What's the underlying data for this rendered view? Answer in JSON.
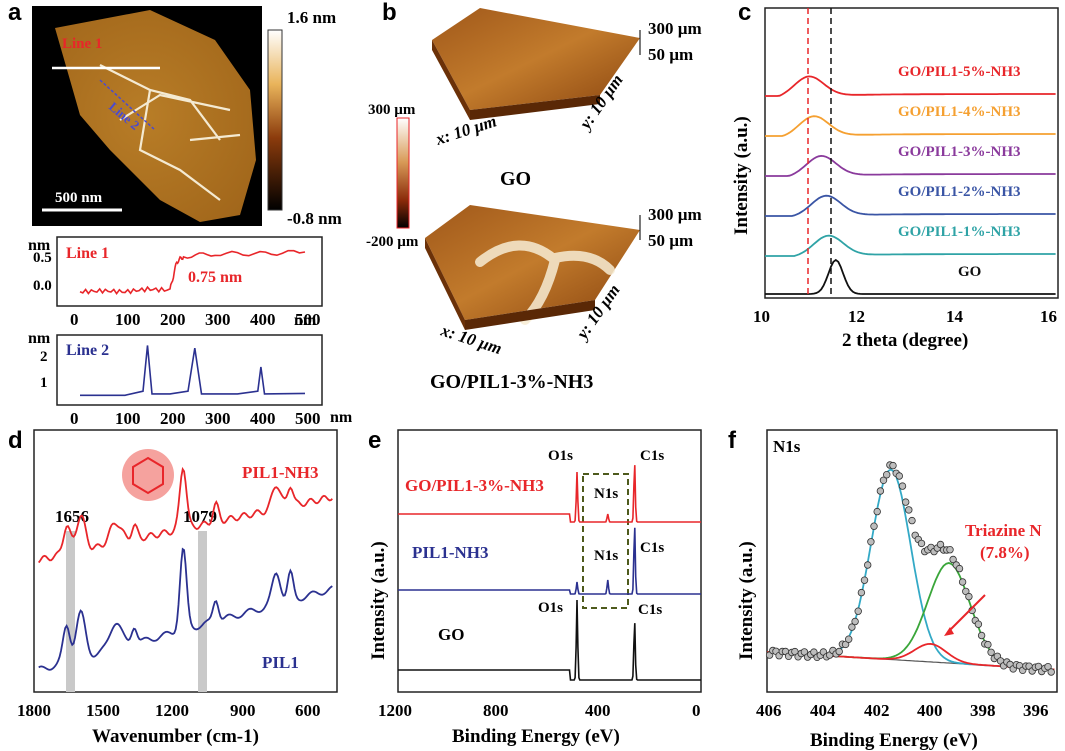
{
  "panels": {
    "a": {
      "letter": "a",
      "afm": {
        "colorbar_max": "1.6 nm",
        "colorbar_min": "-0.8 nm",
        "scalebar": "500 nm",
        "line1_label": "Line 1",
        "line2_label": "Line 2"
      },
      "profile1": {
        "unit_label": "nm",
        "name": "Line 1",
        "annotation": "0.75 nm",
        "x_unit": "nm",
        "x_ticks": [
          "0",
          "100",
          "200",
          "300",
          "400",
          "500"
        ],
        "y_ticks": [
          "0.0",
          "0.5"
        ]
      },
      "profile2": {
        "unit_label": "nm",
        "name": "Line 2",
        "x_unit": "nm",
        "x_ticks": [
          "0",
          "100",
          "200",
          "300",
          "400",
          "500"
        ],
        "y_ticks": [
          "1",
          "2"
        ]
      }
    },
    "b": {
      "letter": "b",
      "colorbar_top": "300 µm",
      "colorbar_bottom": "-200 µm",
      "go": {
        "name": "GO",
        "z1": "300 µm",
        "z2": "50 µm",
        "x": "x: 10 µm",
        "y": "y: 10 µm"
      },
      "gopil": {
        "name": "GO/PIL1-3%-NH3",
        "z1": "300 µm",
        "z2": "50 µm",
        "x": "x: 10 µm",
        "y": "y: 10 µm"
      }
    },
    "c": {
      "letter": "c",
      "ylabel": "Intensity (a.u.)",
      "xlabel": "2 theta (degree)",
      "x_ticks": [
        "10",
        "12",
        "14",
        "16"
      ]
    },
    "d": {
      "letter": "d",
      "xlabel": "Wavenumber (cm-1)",
      "x_ticks": [
        "1800",
        "1500",
        "1200",
        "900",
        "600"
      ],
      "mark1": "1656",
      "mark2": "1079",
      "label_top": "PIL1-NH3",
      "label_bottom": "PIL1"
    },
    "e": {
      "letter": "e",
      "ylabel": "Intensity (a.u.)",
      "xlabel": "Binding Energy (eV)",
      "x_ticks": [
        "1200",
        "800",
        "400",
        "0"
      ],
      "label_top": "GO/PIL1-3%-NH3",
      "label_mid": "PIL1-NH3",
      "label_bot": "GO",
      "o1s": "O1s",
      "c1s": "C1s",
      "n1s": "N1s"
    },
    "f": {
      "letter": "f",
      "ylabel": "Intensity (a.u.)",
      "xlabel": "Binding Energy (eV)",
      "x_ticks": [
        "406",
        "404",
        "402",
        "400",
        "398",
        "396"
      ],
      "title": "N1s",
      "annotation1": "Triazine N",
      "annotation2": "(7.8%)"
    }
  },
  "colors": {
    "red": "#e8262a",
    "blue": "#2b3190",
    "black": "#111111",
    "orange": "#f5a031",
    "purple": "#8a3a9c",
    "navy": "#3a55a5",
    "teal": "#2fa3a6",
    "green": "#3aa63a",
    "cyan": "#33a9c6",
    "grayband": "#c9c9c9",
    "olive": "#4e5a1c"
  },
  "chart_data": [
    {
      "panel": "a-line1",
      "type": "line",
      "xlabel": "",
      "ylabel": "",
      "xlim": [
        0,
        500
      ],
      "ylim": [
        -0.2,
        0.9
      ],
      "series": [
        {
          "name": "Line 1",
          "x": [
            0,
            50,
            100,
            150,
            200,
            215,
            230,
            300,
            400,
            500
          ],
          "y": [
            -0.05,
            -0.03,
            -0.05,
            0.0,
            -0.02,
            0.5,
            0.6,
            0.65,
            0.65,
            0.68
          ]
        }
      ]
    },
    {
      "panel": "a-line2",
      "type": "line",
      "xlabel": "",
      "ylabel": "",
      "xlim": [
        0,
        500
      ],
      "ylim": [
        0.3,
        2.6
      ],
      "series": [
        {
          "name": "Line 2",
          "x": [
            0,
            100,
            140,
            150,
            160,
            200,
            240,
            255,
            270,
            350,
            395,
            402,
            410,
            500
          ],
          "y": [
            0.55,
            0.55,
            0.7,
            2.4,
            0.6,
            0.6,
            0.7,
            2.3,
            0.6,
            0.6,
            0.7,
            1.6,
            0.6,
            0.62
          ]
        }
      ]
    },
    {
      "panel": "c",
      "type": "line",
      "xlabel": "2 theta (degree)",
      "ylabel": "Intensity (a.u.)",
      "xlim": [
        10,
        16
      ],
      "series": [
        {
          "name": "GO/PIL1-5%-NH3",
          "peak": 10.9
        },
        {
          "name": "GO/PIL1-4%-NH3",
          "peak": 11.0
        },
        {
          "name": "GO/PIL1-3%-NH3",
          "peak": 11.15
        },
        {
          "name": "GO/PIL1-2%-NH3",
          "peak": 11.25
        },
        {
          "name": "GO/PIL1-1%-NH3",
          "peak": 11.3
        },
        {
          "name": "GO",
          "peak": 11.45
        }
      ]
    },
    {
      "panel": "d",
      "type": "line",
      "xlabel": "Wavenumber (cm-1)",
      "ylabel": "",
      "xlim": [
        1800,
        500
      ],
      "series": [
        {
          "name": "PIL1-NH3"
        },
        {
          "name": "PIL1"
        }
      ]
    },
    {
      "panel": "e",
      "type": "line",
      "xlabel": "Binding Energy (eV)",
      "ylabel": "Intensity (a.u.)",
      "xlim": [
        1300,
        0
      ],
      "series": [
        {
          "name": "GO/PIL1-3%-NH3"
        },
        {
          "name": "PIL1-NH3"
        },
        {
          "name": "GO"
        }
      ]
    },
    {
      "panel": "f",
      "type": "scatter",
      "xlabel": "Binding Energy (eV)",
      "ylabel": "Intensity (a.u.)",
      "xlim": [
        406,
        395
      ],
      "series": [
        {
          "name": "N1s"
        }
      ]
    }
  ]
}
